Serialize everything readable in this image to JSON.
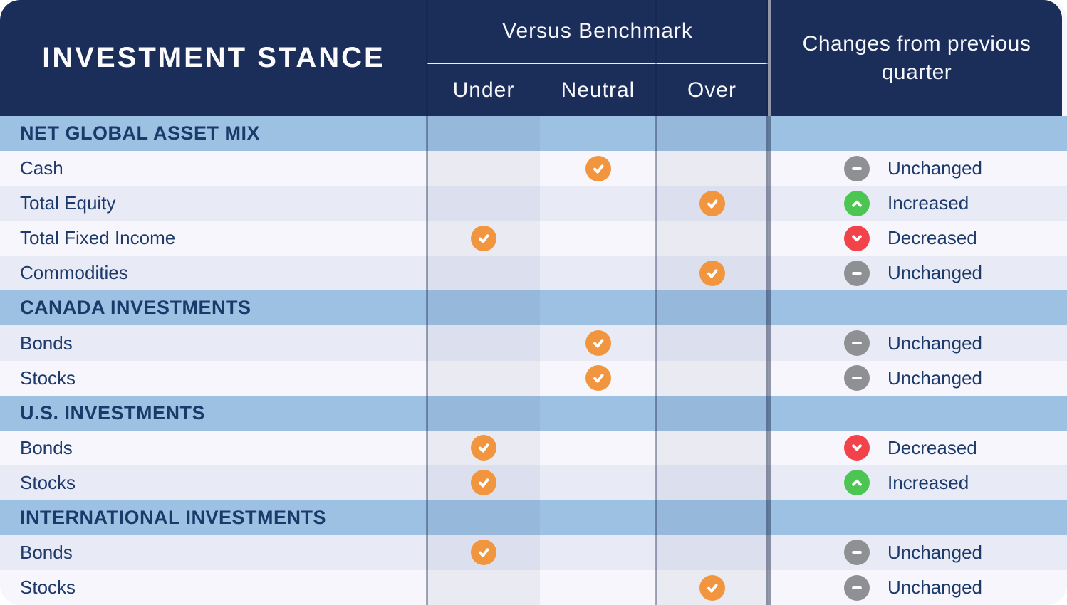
{
  "header": {
    "title": "INVESTMENT STANCE",
    "benchmark_group_label": "Versus Benchmark",
    "changes_header": "Changes from previous quarter"
  },
  "change_labels": {
    "unchanged": "Unchanged",
    "increased": "Increased",
    "decreased": "Decreased"
  },
  "icons": {
    "stance_marker": "check-circle-icon",
    "unchanged": "minus-circle-icon",
    "increased": "arrow-up-circle-icon",
    "decreased": "arrow-down-circle-icon"
  },
  "colors": {
    "header_navy": "#1b2d59",
    "section_band_blue": "#9dc1e3",
    "row_light": "#f7f6fc",
    "row_dark": "#e8eaf6",
    "check_orange": "#f2953f",
    "unchanged_gray": "#8f9094",
    "increased_green": "#4cc552",
    "decreased_red": "#f3434a",
    "row_text_navy": "#1e3a6a"
  },
  "chart_data": {
    "type": "table",
    "title": "INVESTMENT STANCE",
    "column_groups": [
      "Versus Benchmark",
      "Changes from previous quarter"
    ],
    "benchmark_columns": [
      "Under",
      "Neutral",
      "Over"
    ],
    "sections": [
      {
        "title": "NET GLOBAL ASSET MIX",
        "rows": [
          {
            "label": "Cash",
            "stance": "neutral",
            "change": "unchanged",
            "shade": "light"
          },
          {
            "label": "Total Equity",
            "stance": "over",
            "change": "increased",
            "shade": "dark"
          },
          {
            "label": "Total Fixed Income",
            "stance": "under",
            "change": "decreased",
            "shade": "light"
          },
          {
            "label": "Commodities",
            "stance": "over",
            "change": "unchanged",
            "shade": "dark"
          }
        ]
      },
      {
        "title": "CANADA INVESTMENTS",
        "rows": [
          {
            "label": "Bonds",
            "stance": "neutral",
            "change": "unchanged",
            "shade": "dark"
          },
          {
            "label": "Stocks",
            "stance": "neutral",
            "change": "unchanged",
            "shade": "light"
          }
        ]
      },
      {
        "title": "U.S. INVESTMENTS",
        "rows": [
          {
            "label": "Bonds",
            "stance": "under",
            "change": "decreased",
            "shade": "light"
          },
          {
            "label": "Stocks",
            "stance": "under",
            "change": "increased",
            "shade": "dark"
          }
        ]
      },
      {
        "title": "INTERNATIONAL INVESTMENTS",
        "rows": [
          {
            "label": "Bonds",
            "stance": "under",
            "change": "unchanged",
            "shade": "dark"
          },
          {
            "label": "Stocks",
            "stance": "over",
            "change": "unchanged",
            "shade": "light"
          }
        ]
      }
    ]
  }
}
